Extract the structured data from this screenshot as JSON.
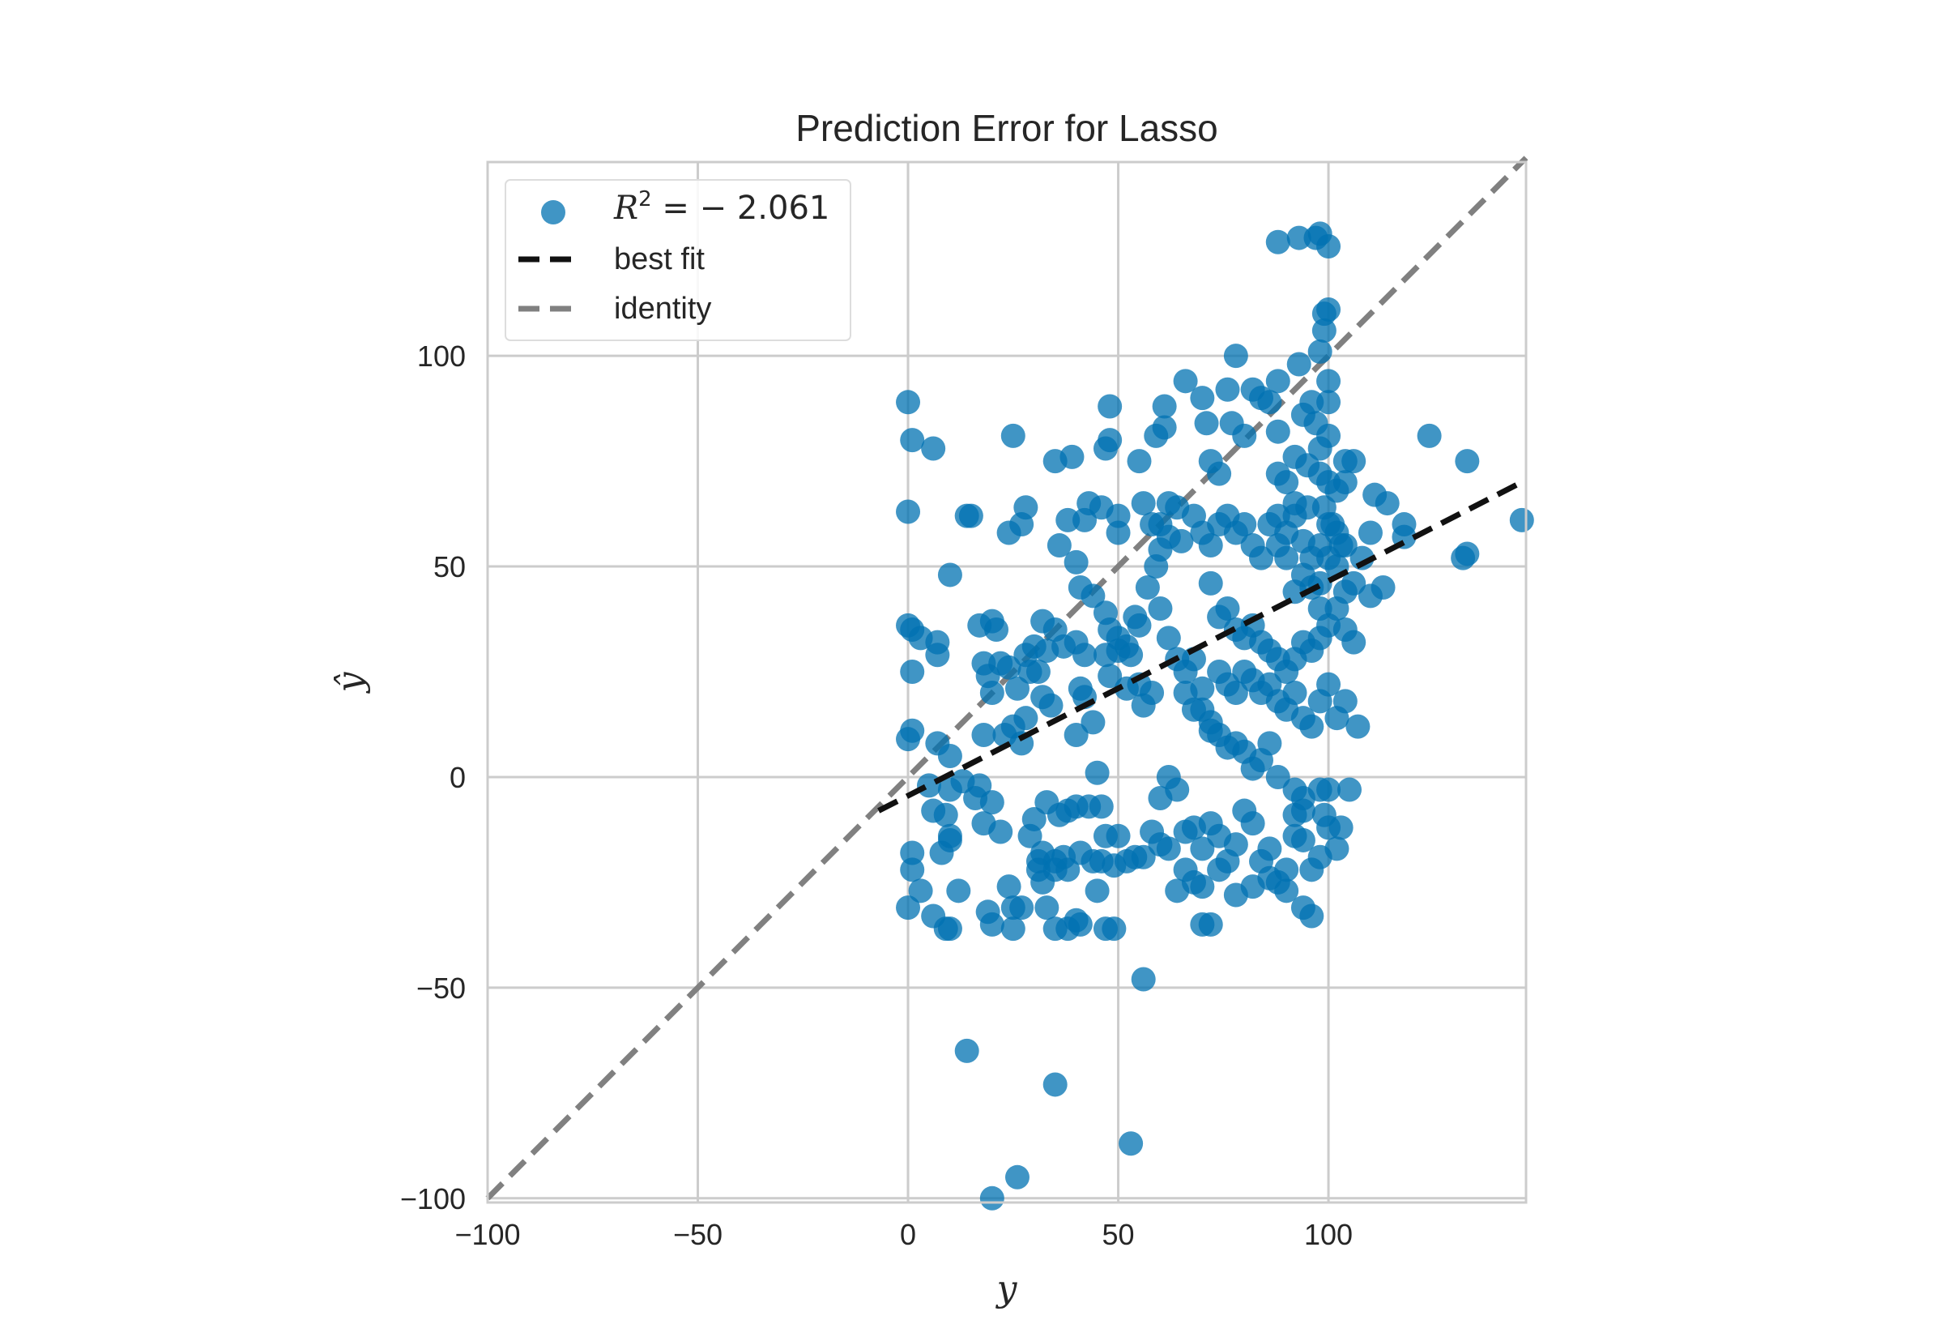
{
  "chart_data": {
    "type": "scatter",
    "title": "Prediction Error for Lasso",
    "xlabel": "y",
    "ylabel": "ŷ",
    "xlim": [
      -100,
      147
    ],
    "ylim": [
      -101,
      146
    ],
    "xticks": [
      -100,
      -50,
      0,
      50,
      100
    ],
    "yticks": [
      -100,
      -50,
      0,
      50,
      100
    ],
    "xtick_labels": [
      "−100",
      "−50",
      "0",
      "50",
      "100"
    ],
    "ytick_labels": [
      "−100",
      "−50",
      "0",
      "50",
      "100"
    ],
    "grid": true,
    "legend_position": "upper-left",
    "colors": {
      "points": "#0072B2",
      "best_fit": "#111111",
      "identity": "#808080",
      "grid": "#cccccc",
      "frame": "#cccccc"
    },
    "legend": {
      "r2_prefix": "R",
      "r2_exponent": "2",
      "r2_value": " = − 2.061",
      "best_fit": "best fit",
      "identity": "identity"
    },
    "best_fit_line": {
      "x": [
        -7,
        146
      ],
      "y": [
        -8,
        70
      ]
    },
    "identity_line": {
      "x": [
        -100,
        147
      ],
      "y": [
        -100,
        147
      ]
    },
    "points": [
      [
        0,
        89
      ],
      [
        1,
        80
      ],
      [
        6,
        78
      ],
      [
        0,
        63
      ],
      [
        0,
        36
      ],
      [
        1,
        35
      ],
      [
        3,
        33
      ],
      [
        7,
        32
      ],
      [
        7,
        29
      ],
      [
        1,
        25
      ],
      [
        10,
        48
      ],
      [
        14,
        62
      ],
      [
        15,
        62
      ],
      [
        0,
        9
      ],
      [
        1,
        11
      ],
      [
        7,
        8
      ],
      [
        10,
        5
      ],
      [
        13,
        -1
      ],
      [
        17,
        -2
      ],
      [
        10,
        -3
      ],
      [
        5,
        -2
      ],
      [
        1,
        -18
      ],
      [
        1,
        -22
      ],
      [
        3,
        -27
      ],
      [
        0,
        -31
      ],
      [
        6,
        -33
      ],
      [
        10,
        -36
      ],
      [
        9,
        -36
      ],
      [
        8,
        -18
      ],
      [
        10,
        -15
      ],
      [
        12,
        -27
      ],
      [
        6,
        -8
      ],
      [
        9,
        -9
      ],
      [
        10,
        -14
      ],
      [
        16,
        -5
      ],
      [
        18,
        -11
      ],
      [
        20,
        -6
      ],
      [
        22,
        -13
      ],
      [
        19,
        -32
      ],
      [
        24,
        -26
      ],
      [
        25,
        -31
      ],
      [
        25,
        -36
      ],
      [
        27,
        -31
      ],
      [
        20,
        -35
      ],
      [
        17,
        36
      ],
      [
        20,
        37
      ],
      [
        21,
        35
      ],
      [
        18,
        27
      ],
      [
        22,
        27
      ],
      [
        19,
        24
      ],
      [
        20,
        20
      ],
      [
        18,
        10
      ],
      [
        23,
        10
      ],
      [
        25,
        12
      ],
      [
        28,
        14
      ],
      [
        27,
        8
      ],
      [
        26,
        21
      ],
      [
        24,
        26
      ],
      [
        25,
        81
      ],
      [
        24,
        58
      ],
      [
        27,
        60
      ],
      [
        28,
        64
      ],
      [
        32,
        37
      ],
      [
        30,
        31
      ],
      [
        28,
        29
      ],
      [
        29,
        25
      ],
      [
        31,
        25
      ],
      [
        32,
        19
      ],
      [
        34,
        17
      ],
      [
        33,
        30
      ],
      [
        35,
        35
      ],
      [
        37,
        31
      ],
      [
        40,
        32
      ],
      [
        42,
        29
      ],
      [
        42,
        19
      ],
      [
        44,
        13
      ],
      [
        40,
        10
      ],
      [
        41,
        21
      ],
      [
        29,
        -14
      ],
      [
        30,
        -10
      ],
      [
        31,
        -22
      ],
      [
        32,
        -25
      ],
      [
        35,
        -22
      ],
      [
        32,
        -18
      ],
      [
        31,
        -20
      ],
      [
        35,
        -20
      ],
      [
        37,
        -19
      ],
      [
        38,
        -22
      ],
      [
        41,
        -18
      ],
      [
        44,
        -20
      ],
      [
        46,
        -20
      ],
      [
        49,
        -21
      ],
      [
        33,
        -6
      ],
      [
        36,
        -9
      ],
      [
        38,
        -8
      ],
      [
        40,
        -7
      ],
      [
        43,
        -7
      ],
      [
        46,
        -7
      ],
      [
        45,
        1
      ],
      [
        47,
        -14
      ],
      [
        50,
        -14
      ],
      [
        52,
        -20
      ],
      [
        54,
        -19
      ],
      [
        56,
        -19
      ],
      [
        58,
        -13
      ],
      [
        33,
        -31
      ],
      [
        35,
        -36
      ],
      [
        38,
        -36
      ],
      [
        40,
        -34
      ],
      [
        41,
        -35
      ],
      [
        45,
        -27
      ],
      [
        47,
        -36
      ],
      [
        49,
        -36
      ],
      [
        35,
        75
      ],
      [
        39,
        76
      ],
      [
        36,
        55
      ],
      [
        38,
        61
      ],
      [
        40,
        51
      ],
      [
        43,
        65
      ],
      [
        42,
        61
      ],
      [
        46,
        64
      ],
      [
        47,
        78
      ],
      [
        48,
        88
      ],
      [
        48,
        80
      ],
      [
        50,
        62
      ],
      [
        50,
        58
      ],
      [
        41,
        45
      ],
      [
        44,
        43
      ],
      [
        47,
        39
      ],
      [
        48,
        35
      ],
      [
        50,
        33
      ],
      [
        52,
        31
      ],
      [
        54,
        38
      ],
      [
        55,
        36
      ],
      [
        53,
        29
      ],
      [
        50,
        30
      ],
      [
        47,
        29
      ],
      [
        48,
        24
      ],
      [
        52,
        21
      ],
      [
        55,
        22
      ],
      [
        56,
        17
      ],
      [
        58,
        20
      ],
      [
        55,
        75
      ],
      [
        56,
        65
      ],
      [
        58,
        60
      ],
      [
        60,
        60
      ],
      [
        62,
        65
      ],
      [
        64,
        64
      ],
      [
        62,
        57
      ],
      [
        60,
        54
      ],
      [
        59,
        50
      ],
      [
        57,
        45
      ],
      [
        60,
        40
      ],
      [
        62,
        33
      ],
      [
        64,
        28
      ],
      [
        66,
        25
      ],
      [
        68,
        28
      ],
      [
        66,
        20
      ],
      [
        68,
        16
      ],
      [
        70,
        21
      ],
      [
        72,
        13
      ],
      [
        72,
        11
      ],
      [
        70,
        16
      ],
      [
        59,
        81
      ],
      [
        61,
        83
      ],
      [
        61,
        88
      ],
      [
        66,
        94
      ],
      [
        70,
        90
      ],
      [
        71,
        84
      ],
      [
        72,
        75
      ],
      [
        74,
        72
      ],
      [
        76,
        92
      ],
      [
        78,
        100
      ],
      [
        77,
        84
      ],
      [
        80,
        81
      ],
      [
        82,
        92
      ],
      [
        84,
        90
      ],
      [
        86,
        89
      ],
      [
        88,
        94
      ],
      [
        88,
        82
      ],
      [
        65,
        56
      ],
      [
        68,
        62
      ],
      [
        70,
        58
      ],
      [
        72,
        55
      ],
      [
        74,
        60
      ],
      [
        76,
        62
      ],
      [
        78,
        58
      ],
      [
        80,
        60
      ],
      [
        82,
        55
      ],
      [
        84,
        52
      ],
      [
        86,
        60
      ],
      [
        88,
        62
      ],
      [
        90,
        58
      ],
      [
        92,
        62
      ],
      [
        94,
        56
      ],
      [
        96,
        52
      ],
      [
        98,
        55
      ],
      [
        100,
        60
      ],
      [
        102,
        58
      ],
      [
        104,
        55
      ],
      [
        72,
        46
      ],
      [
        74,
        38
      ],
      [
        76,
        40
      ],
      [
        78,
        35
      ],
      [
        80,
        33
      ],
      [
        82,
        36
      ],
      [
        84,
        32
      ],
      [
        86,
        30
      ],
      [
        88,
        28
      ],
      [
        90,
        25
      ],
      [
        92,
        28
      ],
      [
        94,
        32
      ],
      [
        96,
        30
      ],
      [
        98,
        33
      ],
      [
        100,
        36
      ],
      [
        102,
        40
      ],
      [
        104,
        35
      ],
      [
        106,
        32
      ],
      [
        74,
        25
      ],
      [
        76,
        22
      ],
      [
        78,
        20
      ],
      [
        80,
        25
      ],
      [
        82,
        23
      ],
      [
        84,
        20
      ],
      [
        86,
        22
      ],
      [
        88,
        18
      ],
      [
        90,
        16
      ],
      [
        92,
        20
      ],
      [
        94,
        14
      ],
      [
        96,
        12
      ],
      [
        98,
        18
      ],
      [
        100,
        22
      ],
      [
        102,
        14
      ],
      [
        104,
        18
      ],
      [
        107,
        12
      ],
      [
        74,
        10
      ],
      [
        76,
        7
      ],
      [
        78,
        8
      ],
      [
        80,
        6
      ],
      [
        82,
        2
      ],
      [
        84,
        4
      ],
      [
        86,
        8
      ],
      [
        88,
        0
      ],
      [
        92,
        -3
      ],
      [
        94,
        -5
      ],
      [
        60,
        -5
      ],
      [
        62,
        0
      ],
      [
        64,
        -3
      ],
      [
        66,
        -13
      ],
      [
        68,
        -12
      ],
      [
        70,
        -17
      ],
      [
        72,
        -11
      ],
      [
        74,
        -14
      ],
      [
        76,
        -20
      ],
      [
        78,
        -16
      ],
      [
        80,
        -8
      ],
      [
        82,
        -11
      ],
      [
        84,
        -20
      ],
      [
        86,
        -17
      ],
      [
        88,
        -25
      ],
      [
        90,
        -22
      ],
      [
        92,
        -14
      ],
      [
        94,
        -15
      ],
      [
        96,
        -22
      ],
      [
        98,
        -19
      ],
      [
        100,
        -12
      ],
      [
        102,
        -17
      ],
      [
        60,
        -16
      ],
      [
        62,
        -17
      ],
      [
        64,
        -27
      ],
      [
        66,
        -22
      ],
      [
        68,
        -25
      ],
      [
        70,
        -26
      ],
      [
        70,
        -35
      ],
      [
        72,
        -35
      ],
      [
        74,
        -22
      ],
      [
        78,
        -28
      ],
      [
        82,
        -26
      ],
      [
        86,
        -24
      ],
      [
        90,
        -27
      ],
      [
        94,
        -31
      ],
      [
        96,
        -33
      ],
      [
        92,
        -9
      ],
      [
        94,
        -8
      ],
      [
        98,
        -3
      ],
      [
        99,
        -9
      ],
      [
        100,
        -3
      ],
      [
        103,
        -12
      ],
      [
        105,
        -3
      ],
      [
        88,
        127
      ],
      [
        93,
        128
      ],
      [
        97,
        128
      ],
      [
        98,
        129
      ],
      [
        100,
        126
      ],
      [
        99,
        110
      ],
      [
        100,
        111
      ],
      [
        99,
        106
      ],
      [
        98,
        101
      ],
      [
        93,
        98
      ],
      [
        100,
        94
      ],
      [
        100,
        89
      ],
      [
        96,
        89
      ],
      [
        94,
        86
      ],
      [
        97,
        84
      ],
      [
        100,
        81
      ],
      [
        98,
        78
      ],
      [
        92,
        76
      ],
      [
        95,
        74
      ],
      [
        98,
        72
      ],
      [
        100,
        70
      ],
      [
        102,
        68
      ],
      [
        104,
        75
      ],
      [
        106,
        75
      ],
      [
        104,
        70
      ],
      [
        99,
        64
      ],
      [
        101,
        60
      ],
      [
        103,
        55
      ],
      [
        100,
        52
      ],
      [
        102,
        50
      ],
      [
        104,
        44
      ],
      [
        106,
        46
      ],
      [
        108,
        52
      ],
      [
        110,
        58
      ],
      [
        111,
        67
      ],
      [
        114,
        65
      ],
      [
        118,
        60
      ],
      [
        88,
        72
      ],
      [
        90,
        70
      ],
      [
        92,
        65
      ],
      [
        95,
        64
      ],
      [
        88,
        55
      ],
      [
        90,
        52
      ],
      [
        94,
        48
      ],
      [
        96,
        45
      ],
      [
        98,
        40
      ],
      [
        98,
        46
      ],
      [
        92,
        44
      ],
      [
        118,
        57
      ],
      [
        124,
        81
      ],
      [
        133,
        75
      ],
      [
        132,
        52
      ],
      [
        133,
        53
      ],
      [
        146,
        61
      ],
      [
        110,
        43
      ],
      [
        113,
        45
      ],
      [
        56,
        -48
      ],
      [
        14,
        -65
      ],
      [
        35,
        -73
      ],
      [
        53,
        -87
      ],
      [
        26,
        -95
      ],
      [
        20,
        -100
      ]
    ]
  }
}
